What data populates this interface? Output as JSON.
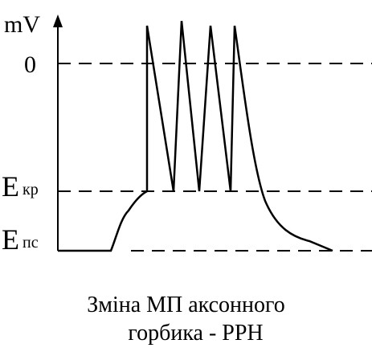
{
  "diagram": {
    "y_axis_unit": "mV",
    "levels": {
      "zero_label": "0",
      "threshold_label": {
        "main": "E",
        "sub": "кр"
      },
      "resting_label": {
        "main": "E",
        "sub": "пс"
      }
    },
    "caption_lines": [
      "Зміна МП аксонного",
      "горбика - РРН"
    ],
    "colors": {
      "stroke": "#000000",
      "background": "#ffffff"
    }
  }
}
